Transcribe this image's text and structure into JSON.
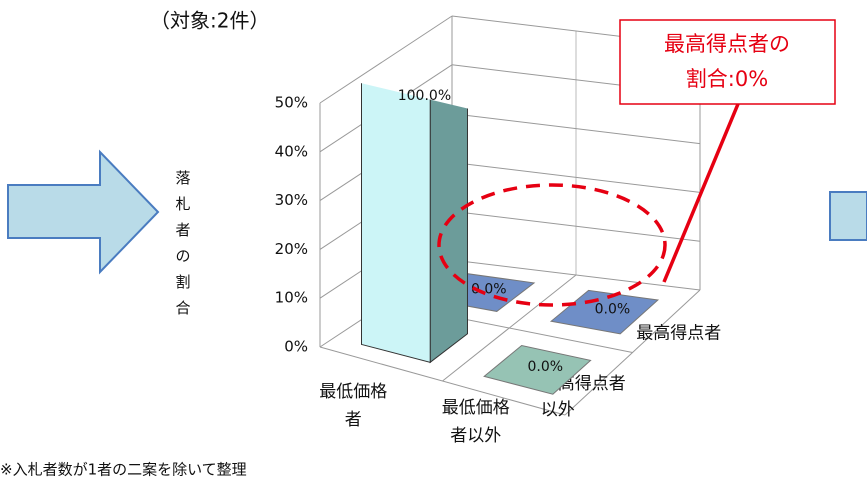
{
  "subtitle": "（対象:2件）",
  "note": "※入札者数が1者の二案を除いて整理",
  "annotation": [
    "最高得点者の",
    "割合:0%"
  ],
  "chart_data": {
    "type": "bar3d",
    "y_label": "落札者の割合",
    "categories": [
      "最低価格者",
      "最低価格者以外"
    ],
    "series": [
      {
        "name": "最高得点者",
        "color": "#6f8ec7",
        "values": [
          0,
          0
        ],
        "value_labels": [
          "0.0%",
          "0.0%"
        ]
      },
      {
        "name": "最高得点者以外",
        "color": "#96c3b4",
        "values": [
          100,
          0
        ],
        "value_labels": [
          "100.0%",
          "0.0%"
        ]
      }
    ],
    "bar_face_color": "#ccf5f7",
    "bar_side_color": "#6c9c9a",
    "ylim": [
      0,
      50
    ],
    "yticks": [
      {
        "value": 0,
        "label": "0%"
      },
      {
        "value": 10,
        "label": "10%"
      },
      {
        "value": 20,
        "label": "20%"
      },
      {
        "value": 30,
        "label": "30%"
      },
      {
        "value": 40,
        "label": "40%"
      },
      {
        "value": 50,
        "label": "50%"
      }
    ],
    "grid": true
  }
}
